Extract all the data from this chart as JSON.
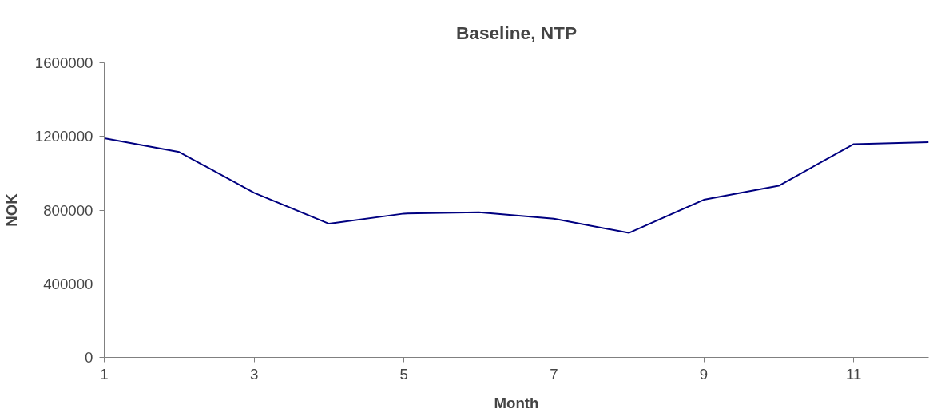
{
  "chart_data": {
    "type": "line",
    "title": "Baseline, NTP",
    "xlabel": "Month",
    "ylabel": "NOK",
    "x": [
      1,
      2,
      3,
      4,
      5,
      6,
      7,
      8,
      9,
      10,
      11,
      12
    ],
    "series": [
      {
        "color": "#000080",
        "values": [
          1190000,
          1115000,
          894000,
          726000,
          781000,
          788000,
          753000,
          676000,
          856000,
          932000,
          1158000,
          1169000
        ]
      }
    ],
    "xlim": [
      1,
      12
    ],
    "xticks": [
      1,
      3,
      5,
      7,
      9,
      11
    ],
    "ylim": [
      0,
      1600000
    ],
    "yticks": [
      0,
      400000,
      800000,
      1200000,
      1600000
    ],
    "grid": false,
    "marker": "none",
    "line_style": "solid"
  }
}
